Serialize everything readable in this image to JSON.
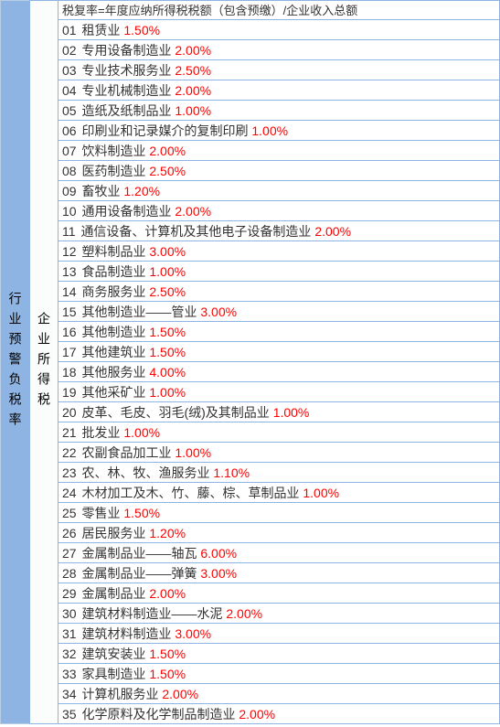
{
  "colors": {
    "header_bg": "#8eb4e3",
    "border": "#8eb4e3",
    "mid_bg": "#fbfdfd",
    "text": "#333333",
    "rate": "#ff0000",
    "white": "#ffffff"
  },
  "left_label": "行业预警负税率",
  "mid_label": "企业所得税",
  "formula": "税复率=年度应纳所得税税额（包含预缴）/企业收入总额",
  "rows": [
    {
      "num": "01",
      "label": "租赁业",
      "rate": "1.50%"
    },
    {
      "num": "02",
      "label": "专用设备制造业",
      "rate": "2.00%"
    },
    {
      "num": "03",
      "label": "专业技术服务业",
      "rate": "2.50%"
    },
    {
      "num": "04",
      "label": "专业机械制造业",
      "rate": "2.00%"
    },
    {
      "num": "05",
      "label": "造纸及纸制品业",
      "rate": "1.00%"
    },
    {
      "num": "06",
      "label": "印刷业和记录媒介的复制印刷",
      "rate": "1.00%"
    },
    {
      "num": "07",
      "label": "饮料制造业",
      "rate": "2.00%"
    },
    {
      "num": "08",
      "label": "医药制造业",
      "rate": "2.50%"
    },
    {
      "num": "09",
      "label": "畜牧业",
      "rate": "1.20%"
    },
    {
      "num": "10",
      "label": "通用设备制造业",
      "rate": "2.00%"
    },
    {
      "num": "11",
      "label": "通信设备、计算机及其他电子设备制造业",
      "rate": "2.00%"
    },
    {
      "num": "12",
      "label": "塑料制品业",
      "rate": "3.00%"
    },
    {
      "num": "13",
      "label": "食品制造业",
      "rate": "1.00%"
    },
    {
      "num": "14",
      "label": "商务服务业",
      "rate": "2.50%"
    },
    {
      "num": "15",
      "label": "其他制造业——管业",
      "rate": "3.00%"
    },
    {
      "num": "16",
      "label": "其他制造业",
      "rate": "1.50%"
    },
    {
      "num": "17",
      "label": "其他建筑业",
      "rate": "1.50%"
    },
    {
      "num": "18",
      "label": "其他服务业",
      "rate": "4.00%"
    },
    {
      "num": "19",
      "label": "其他采矿业",
      "rate": "1.00%"
    },
    {
      "num": "20",
      "label": "皮革、毛皮、羽毛(绒)及其制品业",
      "rate": "1.00%"
    },
    {
      "num": "21",
      "label": "批发业",
      "rate": "1.00%"
    },
    {
      "num": "22",
      "label": "农副食品加工业",
      "rate": "1.00%"
    },
    {
      "num": "23",
      "label": "农、林、牧、渔服务业",
      "rate": "1.10%"
    },
    {
      "num": "24",
      "label": "木材加工及木、竹、藤、棕、草制品业",
      "rate": "1.00%"
    },
    {
      "num": "25",
      "label": "零售业",
      "rate": "1.50%"
    },
    {
      "num": "26",
      "label": "居民服务业",
      "rate": "1.20%"
    },
    {
      "num": "27",
      "label": "金属制品业——轴瓦",
      "rate": "6.00%"
    },
    {
      "num": "28",
      "label": "金属制品业——弹簧",
      "rate": "3.00%"
    },
    {
      "num": "29",
      "label": "金属制品业",
      "rate": "2.00%"
    },
    {
      "num": "30",
      "label": "建筑材料制造业——水泥",
      "rate": "2.00%"
    },
    {
      "num": "31",
      "label": "建筑材料制造业",
      "rate": "3.00%"
    },
    {
      "num": "32",
      "label": "建筑安装业",
      "rate": "1.50%"
    },
    {
      "num": "33",
      "label": "家具制造业",
      "rate": "1.50%"
    },
    {
      "num": "34",
      "label": "计算机服务业",
      "rate": "2.00%"
    },
    {
      "num": "35",
      "label": "化学原料及化学制品制造业",
      "rate": "2.00%"
    }
  ]
}
